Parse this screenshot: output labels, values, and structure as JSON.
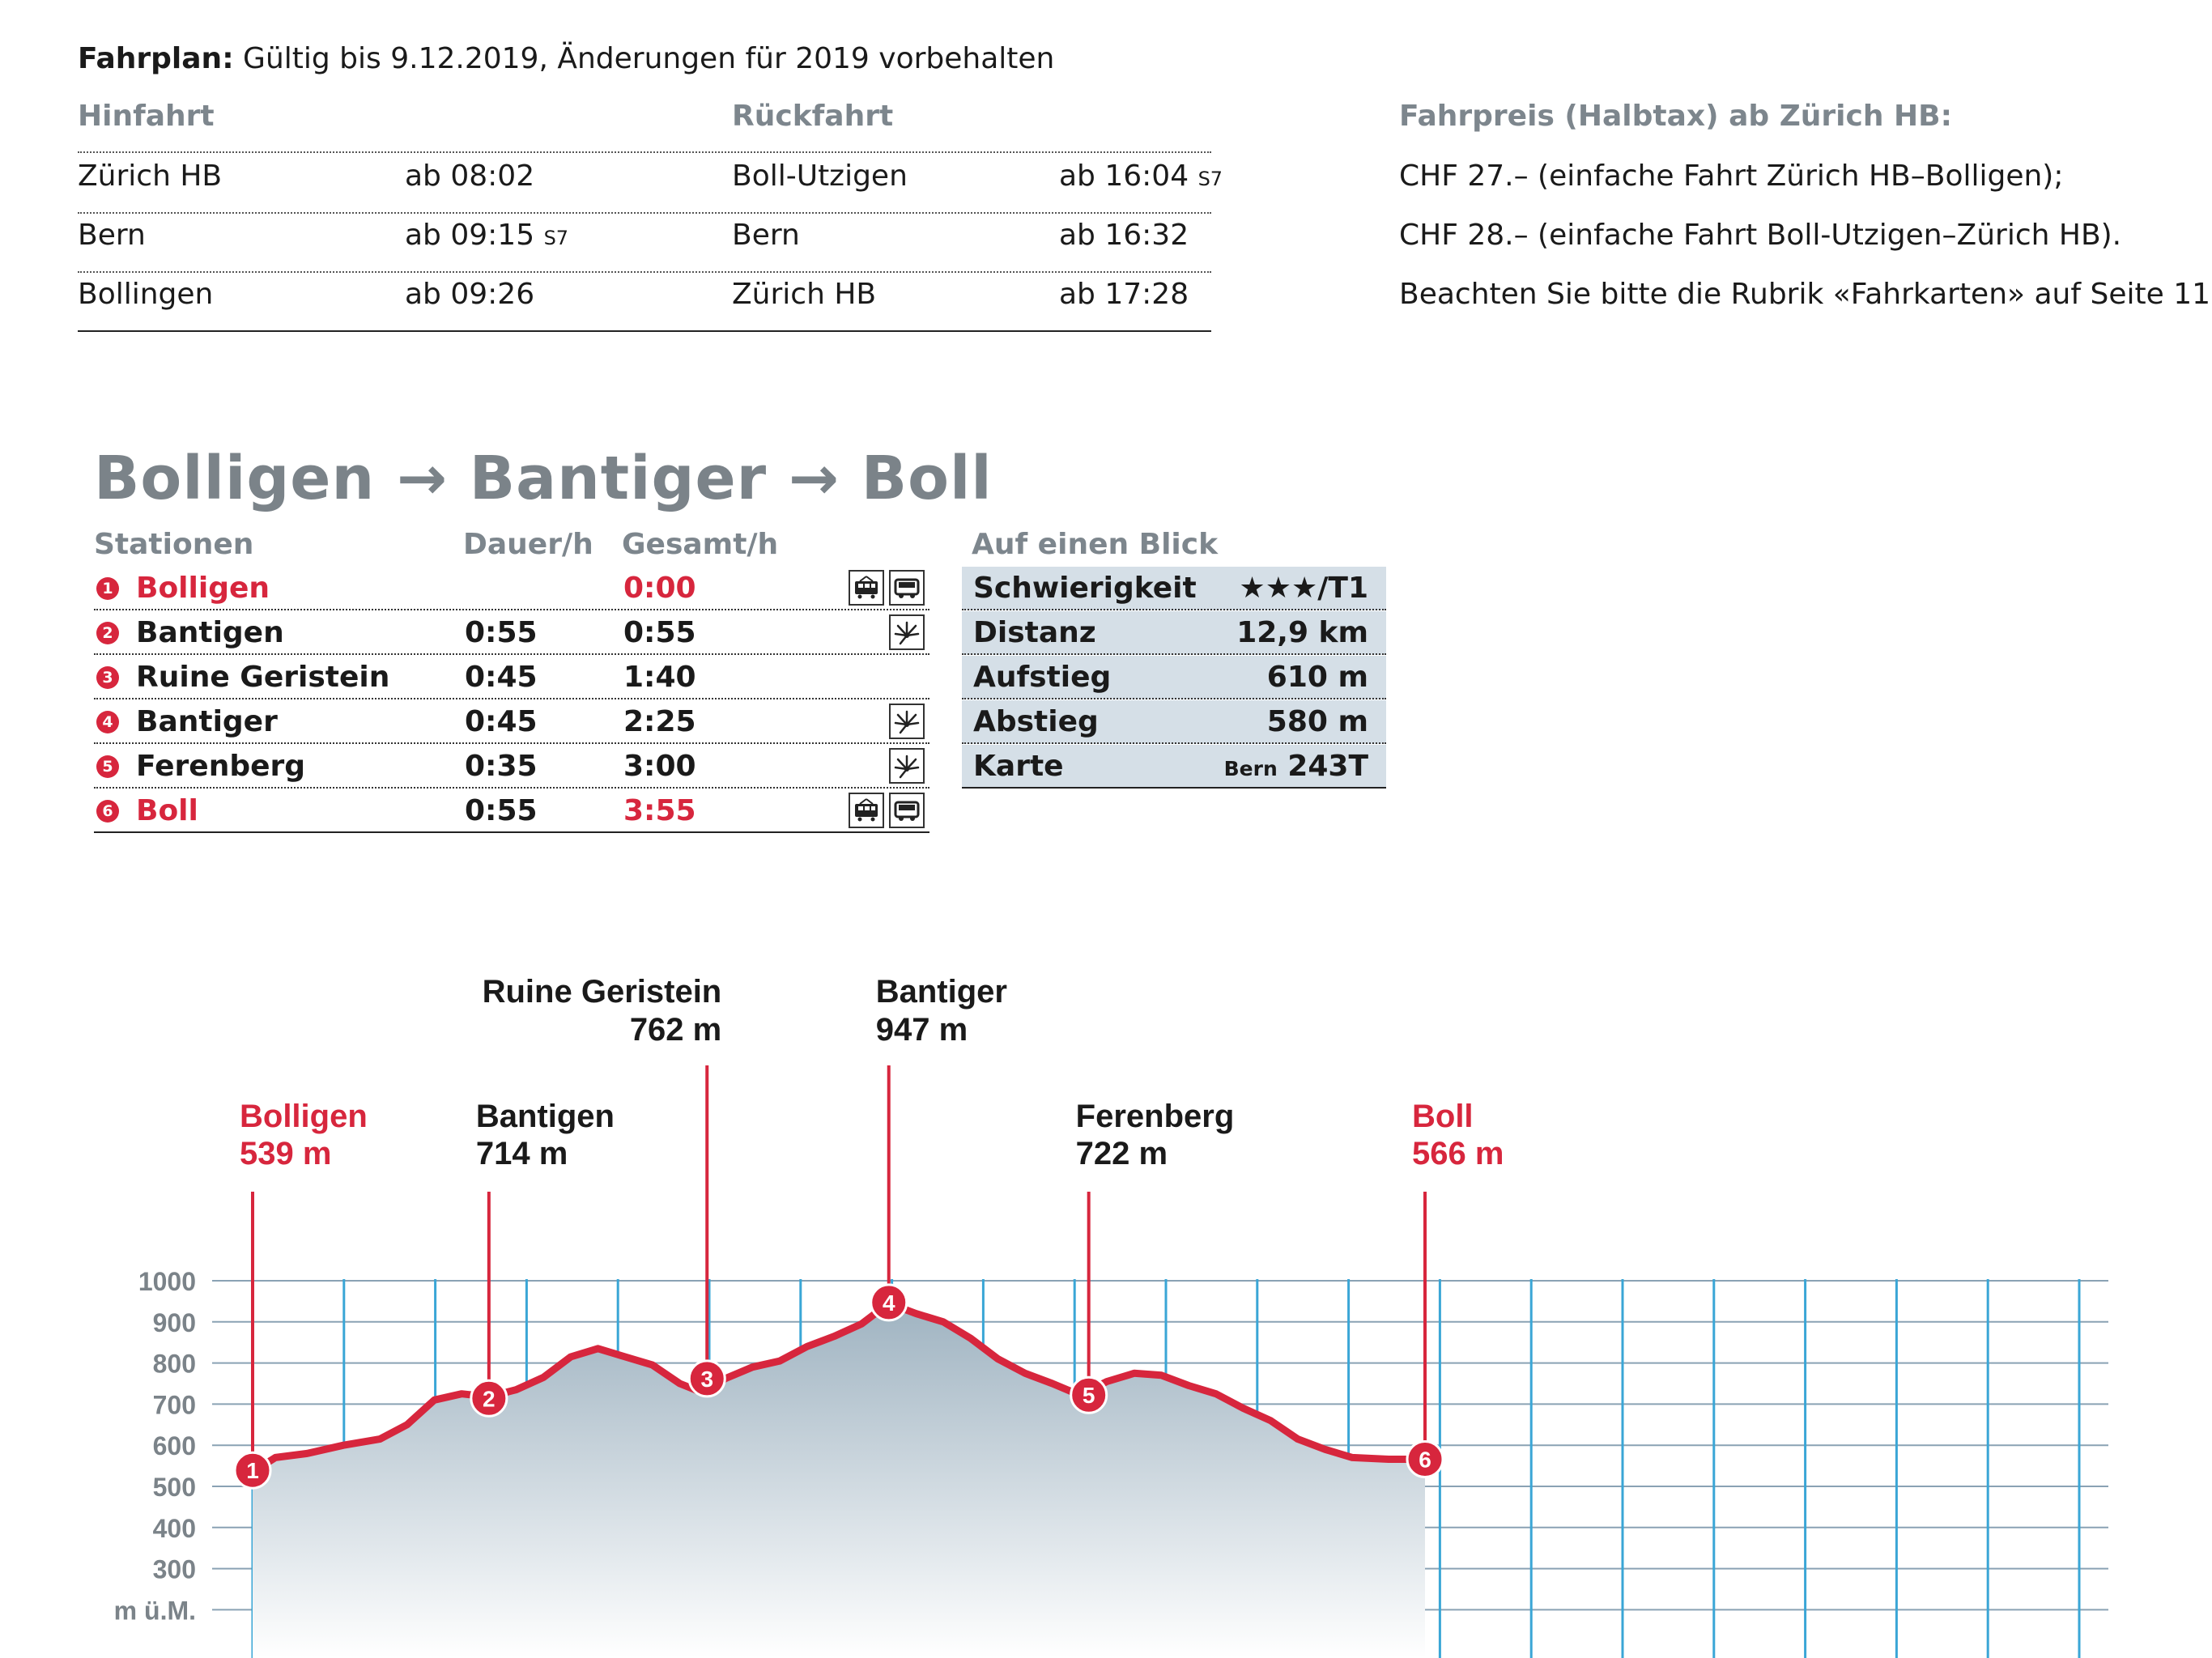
{
  "fahrplan": {
    "label": "Fahrplan:",
    "text": "Gültig bis 9.12.2019, Änderungen für 2019 vorbehalten",
    "hinfahrt_header": "Hinfahrt",
    "rueckfahrt_header": "Rückfahrt",
    "rows": [
      {
        "hin_station": "Zürich HB",
        "hin_time": "ab 08:02",
        "hin_note": "",
        "rueck_station": "Boll-Utzigen",
        "rueck_time": "ab 16:04",
        "rueck_note": "S7"
      },
      {
        "hin_station": "Bern",
        "hin_time": "ab 09:15",
        "hin_note": "S7",
        "rueck_station": "Bern",
        "rueck_time": "ab 16:32",
        "rueck_note": ""
      },
      {
        "hin_station": "Bollingen",
        "hin_time": "ab 09:26",
        "hin_note": "",
        "rueck_station": "Zürich HB",
        "rueck_time": "ab 17:28",
        "rueck_note": ""
      }
    ]
  },
  "fahrpreis": {
    "header": "Fahrpreis (Halbtax) ab Zürich HB:",
    "lines": [
      "CHF 27.– (einfache Fahrt Zürich HB–Bolligen);",
      "CHF 28.– (einfache Fahrt Boll-Utzigen–Zürich HB).",
      "Beachten Sie bitte die Rubrik «Fahrkarten» auf Seite 11."
    ]
  },
  "route": {
    "parts": [
      "Bolligen",
      "Bantiger",
      "Boll"
    ],
    "arrow": "→"
  },
  "stations_table": {
    "headers": {
      "station": "Stationen",
      "duration": "Dauer/h",
      "total": "Gesamt/h"
    },
    "rows": [
      {
        "num": "1",
        "name": "Bolligen",
        "duration": "",
        "total": "0:00",
        "highlight": true,
        "icons": [
          "train-icon",
          "bus-icon"
        ]
      },
      {
        "num": "2",
        "name": "Bantigen",
        "duration": "0:55",
        "total": "0:55",
        "highlight": false,
        "icons": [
          "viewpoint-icon"
        ]
      },
      {
        "num": "3",
        "name": "Ruine Geristein",
        "duration": "0:45",
        "total": "1:40",
        "highlight": false,
        "icons": []
      },
      {
        "num": "4",
        "name": "Bantiger",
        "duration": "0:45",
        "total": "2:25",
        "highlight": false,
        "icons": [
          "viewpoint-icon"
        ]
      },
      {
        "num": "5",
        "name": "Ferenberg",
        "duration": "0:35",
        "total": "3:00",
        "highlight": false,
        "icons": [
          "viewpoint-icon"
        ]
      },
      {
        "num": "6",
        "name": "Boll",
        "duration": "0:55",
        "total": "3:55",
        "highlight": true,
        "icons": [
          "train-icon",
          "bus-icon"
        ]
      }
    ]
  },
  "auf_einen_blick": {
    "header": "Auf einen Blick",
    "rows": [
      {
        "label": "Schwierigkeit",
        "value": "★★★/T1",
        "prefix": ""
      },
      {
        "label": "Distanz",
        "value": "12,9 km",
        "prefix": ""
      },
      {
        "label": "Aufstieg",
        "value": "610 m",
        "prefix": ""
      },
      {
        "label": "Abstieg",
        "value": "580 m",
        "prefix": ""
      },
      {
        "label": "Karte",
        "value": "243T",
        "prefix": "Bern"
      }
    ]
  },
  "profile": {
    "ylabel": "m ü.M.",
    "yticks": [
      1000,
      900,
      800,
      700,
      600,
      500,
      400,
      300
    ],
    "ylim": [
      200,
      1000
    ],
    "colors": {
      "line": "#d7263d",
      "grid": "#8aa2b4",
      "vgrid": "#3aa6d6",
      "fill_top": "#9fb3c1",
      "fill_bottom": "#ffffff",
      "label_dark": "#1a1a1a",
      "label_red": "#d7263d"
    },
    "stations": [
      {
        "num": "1",
        "name": "Bolligen",
        "elevation_label": "539 m",
        "elevation": 539,
        "red": true
      },
      {
        "num": "2",
        "name": "Bantigen",
        "elevation_label": "714 m",
        "elevation": 714,
        "red": false
      },
      {
        "num": "3",
        "name": "Ruine Geristein",
        "elevation_label": "762 m",
        "elevation": 762,
        "red": false
      },
      {
        "num": "4",
        "name": "Bantiger",
        "elevation_label": "947 m",
        "elevation": 947,
        "red": false
      },
      {
        "num": "5",
        "name": "Ferenberg",
        "elevation_label": "722 m",
        "elevation": 722,
        "red": false
      },
      {
        "num": "6",
        "name": "Boll",
        "elevation_label": "566 m",
        "elevation": 566,
        "red": true
      }
    ],
    "elevation_series": [
      [
        0.0,
        535
      ],
      [
        0.25,
        570
      ],
      [
        0.6,
        580
      ],
      [
        1.0,
        600
      ],
      [
        1.4,
        615
      ],
      [
        1.7,
        650
      ],
      [
        2.0,
        710
      ],
      [
        2.3,
        725
      ],
      [
        2.6,
        718
      ],
      [
        2.9,
        735
      ],
      [
        3.2,
        765
      ],
      [
        3.5,
        815
      ],
      [
        3.8,
        835
      ],
      [
        4.1,
        815
      ],
      [
        4.4,
        795
      ],
      [
        4.7,
        750
      ],
      [
        4.95,
        728
      ],
      [
        5.2,
        762
      ],
      [
        5.5,
        790
      ],
      [
        5.8,
        805
      ],
      [
        6.1,
        840
      ],
      [
        6.4,
        865
      ],
      [
        6.7,
        895
      ],
      [
        7.0,
        945
      ],
      [
        7.3,
        920
      ],
      [
        7.6,
        900
      ],
      [
        7.9,
        860
      ],
      [
        8.2,
        810
      ],
      [
        8.5,
        775
      ],
      [
        8.8,
        750
      ],
      [
        9.1,
        722
      ],
      [
        9.4,
        755
      ],
      [
        9.7,
        775
      ],
      [
        10.0,
        770
      ],
      [
        10.3,
        745
      ],
      [
        10.6,
        725
      ],
      [
        10.9,
        690
      ],
      [
        11.2,
        660
      ],
      [
        11.5,
        615
      ],
      [
        11.8,
        590
      ],
      [
        12.1,
        570
      ],
      [
        12.5,
        566
      ],
      [
        12.9,
        566
      ]
    ],
    "station_km": [
      0.0,
      2.6,
      5.0,
      7.0,
      9.2,
      12.9
    ]
  }
}
